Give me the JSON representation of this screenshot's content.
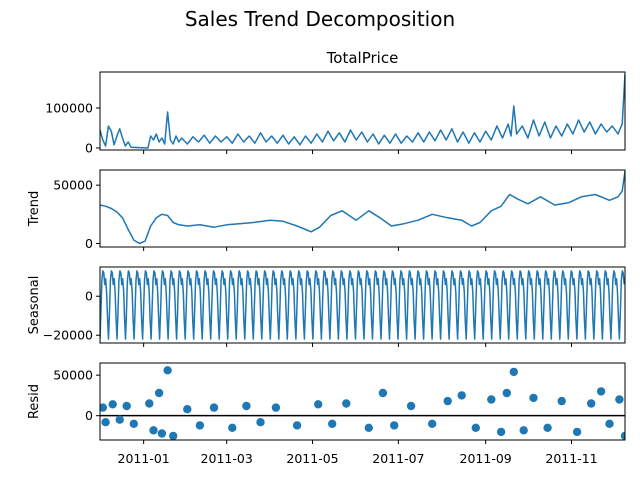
{
  "title": "Sales Trend Decomposition",
  "colors": {
    "line": "#1f77b4",
    "axis": "#000000",
    "zero": "#000000"
  },
  "x_ticks": [
    "2011-01",
    "2011-03",
    "2011-05",
    "2011-07",
    "2011-09",
    "2011-11"
  ],
  "chart_data": [
    {
      "type": "line",
      "title": "TotalPrice",
      "ylabel": "",
      "x_range": [
        "2010-12-01",
        "2011-12-09"
      ],
      "ylim": [
        -5000,
        190000
      ],
      "yticks": [
        0,
        100000
      ],
      "ytick_labels": [
        "0",
        "100000"
      ],
      "points": [
        [
          "2010-12-01",
          45000
        ],
        [
          "2010-12-03",
          20000
        ],
        [
          "2010-12-05",
          5000
        ],
        [
          "2010-12-07",
          55000
        ],
        [
          "2010-12-09",
          42000
        ],
        [
          "2010-12-11",
          8000
        ],
        [
          "2010-12-13",
          30000
        ],
        [
          "2010-12-15",
          48000
        ],
        [
          "2010-12-17",
          25000
        ],
        [
          "2010-12-19",
          5000
        ],
        [
          "2010-12-21",
          15000
        ],
        [
          "2010-12-23",
          2000
        ],
        [
          "2011-01-04",
          0
        ],
        [
          "2011-01-06",
          30000
        ],
        [
          "2011-01-08",
          20000
        ],
        [
          "2011-01-10",
          35000
        ],
        [
          "2011-01-12",
          15000
        ],
        [
          "2011-01-14",
          25000
        ],
        [
          "2011-01-16",
          10000
        ],
        [
          "2011-01-18",
          90000
        ],
        [
          "2011-01-20",
          20000
        ],
        [
          "2011-01-22",
          10000
        ],
        [
          "2011-01-24",
          30000
        ],
        [
          "2011-01-26",
          15000
        ],
        [
          "2011-01-28",
          25000
        ],
        [
          "2011-02-01",
          10000
        ],
        [
          "2011-02-05",
          28000
        ],
        [
          "2011-02-09",
          15000
        ],
        [
          "2011-02-13",
          32000
        ],
        [
          "2011-02-17",
          12000
        ],
        [
          "2011-02-21",
          30000
        ],
        [
          "2011-02-25",
          15000
        ],
        [
          "2011-03-01",
          28000
        ],
        [
          "2011-03-05",
          12000
        ],
        [
          "2011-03-09",
          35000
        ],
        [
          "2011-03-13",
          15000
        ],
        [
          "2011-03-17",
          30000
        ],
        [
          "2011-03-21",
          12000
        ],
        [
          "2011-03-25",
          38000
        ],
        [
          "2011-03-29",
          15000
        ],
        [
          "2011-04-02",
          30000
        ],
        [
          "2011-04-06",
          12000
        ],
        [
          "2011-04-10",
          32000
        ],
        [
          "2011-04-14",
          10000
        ],
        [
          "2011-04-18",
          28000
        ],
        [
          "2011-04-22",
          8000
        ],
        [
          "2011-04-26",
          30000
        ],
        [
          "2011-04-30",
          12000
        ],
        [
          "2011-05-04",
          35000
        ],
        [
          "2011-05-08",
          15000
        ],
        [
          "2011-05-12",
          42000
        ],
        [
          "2011-05-16",
          18000
        ],
        [
          "2011-05-20",
          38000
        ],
        [
          "2011-05-24",
          15000
        ],
        [
          "2011-05-28",
          45000
        ],
        [
          "2011-06-01",
          20000
        ],
        [
          "2011-06-05",
          40000
        ],
        [
          "2011-06-09",
          15000
        ],
        [
          "2011-06-13",
          35000
        ],
        [
          "2011-06-17",
          10000
        ],
        [
          "2011-06-21",
          32000
        ],
        [
          "2011-06-25",
          12000
        ],
        [
          "2011-06-29",
          35000
        ],
        [
          "2011-07-03",
          12000
        ],
        [
          "2011-07-07",
          30000
        ],
        [
          "2011-07-11",
          15000
        ],
        [
          "2011-07-15",
          38000
        ],
        [
          "2011-07-19",
          15000
        ],
        [
          "2011-07-23",
          40000
        ],
        [
          "2011-07-27",
          18000
        ],
        [
          "2011-07-31",
          45000
        ],
        [
          "2011-08-04",
          20000
        ],
        [
          "2011-08-08",
          48000
        ],
        [
          "2011-08-12",
          15000
        ],
        [
          "2011-08-16",
          40000
        ],
        [
          "2011-08-20",
          12000
        ],
        [
          "2011-08-24",
          38000
        ],
        [
          "2011-08-28",
          15000
        ],
        [
          "2011-09-01",
          42000
        ],
        [
          "2011-09-05",
          20000
        ],
        [
          "2011-09-09",
          55000
        ],
        [
          "2011-09-13",
          25000
        ],
        [
          "2011-09-17",
          60000
        ],
        [
          "2011-09-19",
          30000
        ],
        [
          "2011-09-21",
          105000
        ],
        [
          "2011-09-23",
          35000
        ],
        [
          "2011-09-27",
          55000
        ],
        [
          "2011-10-01",
          25000
        ],
        [
          "2011-10-05",
          70000
        ],
        [
          "2011-10-09",
          30000
        ],
        [
          "2011-10-13",
          65000
        ],
        [
          "2011-10-17",
          25000
        ],
        [
          "2011-10-21",
          55000
        ],
        [
          "2011-10-25",
          30000
        ],
        [
          "2011-10-29",
          60000
        ],
        [
          "2011-11-02",
          35000
        ],
        [
          "2011-11-06",
          70000
        ],
        [
          "2011-11-10",
          40000
        ],
        [
          "2011-11-14",
          65000
        ],
        [
          "2011-11-18",
          35000
        ],
        [
          "2011-11-22",
          60000
        ],
        [
          "2011-11-26",
          40000
        ],
        [
          "2011-11-30",
          55000
        ],
        [
          "2011-12-04",
          35000
        ],
        [
          "2011-12-07",
          60000
        ],
        [
          "2011-12-09",
          185000
        ]
      ]
    },
    {
      "type": "line",
      "title": "",
      "ylabel": "Trend",
      "x_range": [
        "2010-12-01",
        "2011-12-09"
      ],
      "ylim": [
        -3000,
        63000
      ],
      "yticks": [
        0,
        50000
      ],
      "ytick_labels": [
        "0",
        "50000"
      ],
      "points": [
        [
          "2010-12-01",
          33000
        ],
        [
          "2010-12-05",
          32000
        ],
        [
          "2010-12-09",
          30000
        ],
        [
          "2010-12-13",
          27000
        ],
        [
          "2010-12-17",
          22000
        ],
        [
          "2010-12-21",
          12000
        ],
        [
          "2010-12-25",
          3000
        ],
        [
          "2010-12-29",
          0
        ],
        [
          "2011-01-02",
          2000
        ],
        [
          "2011-01-06",
          15000
        ],
        [
          "2011-01-10",
          22000
        ],
        [
          "2011-01-14",
          25000
        ],
        [
          "2011-01-18",
          24000
        ],
        [
          "2011-01-22",
          18000
        ],
        [
          "2011-01-26",
          16000
        ],
        [
          "2011-02-01",
          15000
        ],
        [
          "2011-02-10",
          16000
        ],
        [
          "2011-02-20",
          14000
        ],
        [
          "2011-03-01",
          16000
        ],
        [
          "2011-03-10",
          17000
        ],
        [
          "2011-03-20",
          18000
        ],
        [
          "2011-04-01",
          20000
        ],
        [
          "2011-04-10",
          19000
        ],
        [
          "2011-04-20",
          15000
        ],
        [
          "2011-04-30",
          10000
        ],
        [
          "2011-05-06",
          14000
        ],
        [
          "2011-05-14",
          24000
        ],
        [
          "2011-05-22",
          28000
        ],
        [
          "2011-06-01",
          20000
        ],
        [
          "2011-06-10",
          28000
        ],
        [
          "2011-06-18",
          22000
        ],
        [
          "2011-06-26",
          15000
        ],
        [
          "2011-07-05",
          17000
        ],
        [
          "2011-07-15",
          20000
        ],
        [
          "2011-07-25",
          25000
        ],
        [
          "2011-08-05",
          22000
        ],
        [
          "2011-08-15",
          20000
        ],
        [
          "2011-08-22",
          15000
        ],
        [
          "2011-08-28",
          18000
        ],
        [
          "2011-09-05",
          28000
        ],
        [
          "2011-09-12",
          32000
        ],
        [
          "2011-09-18",
          42000
        ],
        [
          "2011-09-24",
          38000
        ],
        [
          "2011-10-01",
          34000
        ],
        [
          "2011-10-10",
          40000
        ],
        [
          "2011-10-20",
          33000
        ],
        [
          "2011-10-30",
          35000
        ],
        [
          "2011-11-08",
          40000
        ],
        [
          "2011-11-18",
          42000
        ],
        [
          "2011-11-28",
          37000
        ],
        [
          "2011-12-04",
          40000
        ],
        [
          "2011-12-07",
          45000
        ],
        [
          "2011-12-09",
          62000
        ]
      ]
    },
    {
      "type": "line",
      "title": "",
      "ylabel": "Seasonal",
      "x_range": [
        "2010-12-01",
        "2011-12-09"
      ],
      "ylim": [
        -24000,
        15000
      ],
      "yticks": [
        0,
        -20000
      ],
      "ytick_labels": [
        "0",
        "−20000"
      ],
      "period_days": 6.05,
      "cycle": [
        -22000,
        -8000,
        8000,
        13000,
        12000,
        6000,
        9000,
        2000,
        -12000
      ],
      "points": []
    },
    {
      "type": "scatter",
      "title": "",
      "ylabel": "Resid",
      "x_range": [
        "2010-12-01",
        "2011-12-09"
      ],
      "ylim": [
        -30000,
        65000
      ],
      "yticks": [
        0,
        50000
      ],
      "ytick_labels": [
        "0",
        "50000"
      ],
      "zero_line": true,
      "points": [
        [
          "2010-12-03",
          10000
        ],
        [
          "2010-12-05",
          -8000
        ],
        [
          "2010-12-10",
          14000
        ],
        [
          "2010-12-15",
          -5000
        ],
        [
          "2010-12-20",
          12000
        ],
        [
          "2010-12-25",
          -10000
        ],
        [
          "2011-01-05",
          15000
        ],
        [
          "2011-01-08",
          -18000
        ],
        [
          "2011-01-12",
          28000
        ],
        [
          "2011-01-14",
          -22000
        ],
        [
          "2011-01-18",
          56000
        ],
        [
          "2011-01-22",
          -25000
        ],
        [
          "2011-02-01",
          8000
        ],
        [
          "2011-02-10",
          -12000
        ],
        [
          "2011-02-20",
          10000
        ],
        [
          "2011-03-05",
          -15000
        ],
        [
          "2011-03-15",
          12000
        ],
        [
          "2011-03-25",
          -8000
        ],
        [
          "2011-04-05",
          10000
        ],
        [
          "2011-04-20",
          -12000
        ],
        [
          "2011-05-05",
          14000
        ],
        [
          "2011-05-15",
          -10000
        ],
        [
          "2011-05-25",
          15000
        ],
        [
          "2011-06-10",
          -15000
        ],
        [
          "2011-06-20",
          28000
        ],
        [
          "2011-06-28",
          -12000
        ],
        [
          "2011-07-10",
          12000
        ],
        [
          "2011-07-25",
          -10000
        ],
        [
          "2011-08-05",
          18000
        ],
        [
          "2011-08-15",
          25000
        ],
        [
          "2011-08-25",
          -15000
        ],
        [
          "2011-09-05",
          20000
        ],
        [
          "2011-09-12",
          -20000
        ],
        [
          "2011-09-16",
          28000
        ],
        [
          "2011-09-21",
          54000
        ],
        [
          "2011-09-28",
          -18000
        ],
        [
          "2011-10-05",
          22000
        ],
        [
          "2011-10-15",
          -15000
        ],
        [
          "2011-10-25",
          18000
        ],
        [
          "2011-11-05",
          -20000
        ],
        [
          "2011-11-15",
          15000
        ],
        [
          "2011-11-22",
          30000
        ],
        [
          "2011-11-28",
          -10000
        ],
        [
          "2011-12-05",
          20000
        ],
        [
          "2011-12-09",
          -25000
        ]
      ]
    }
  ]
}
